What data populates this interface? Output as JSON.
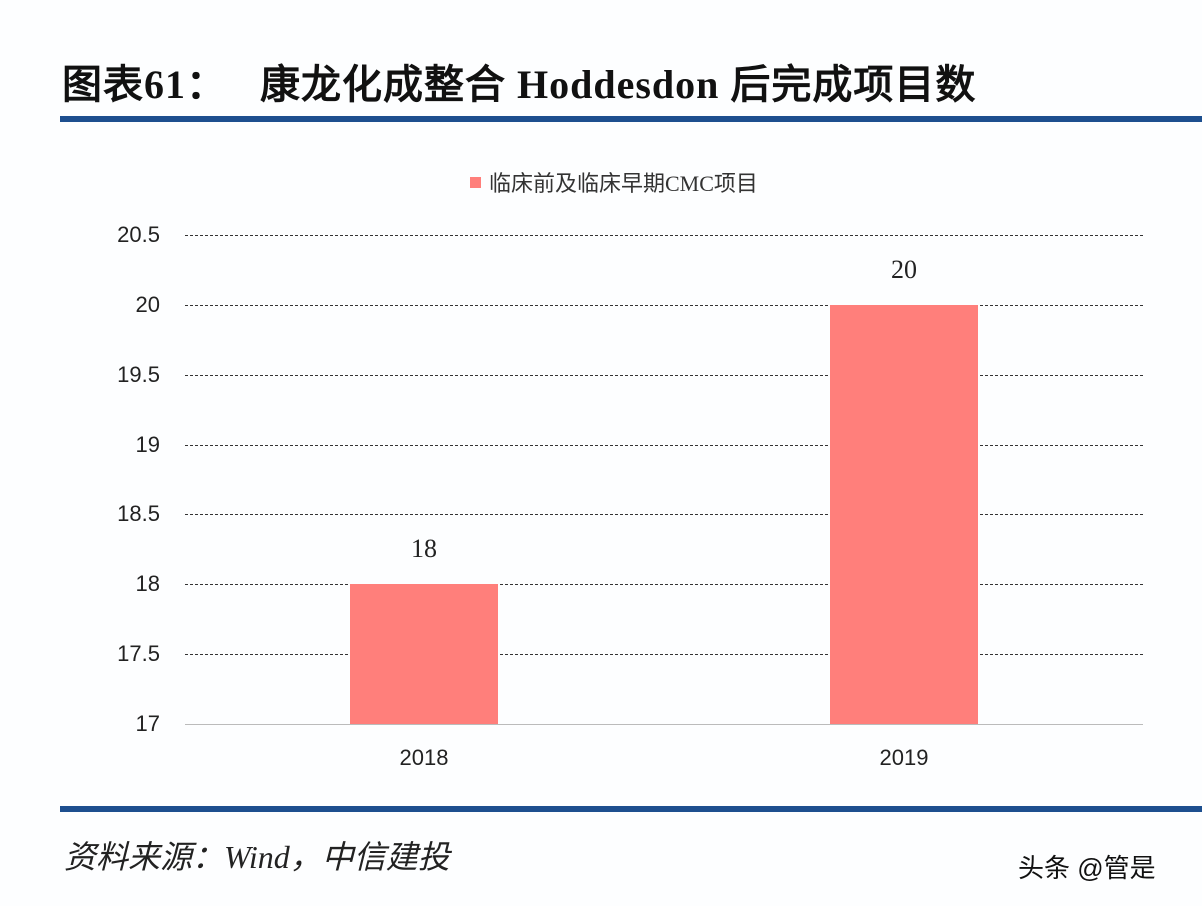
{
  "header": {
    "title": "图表61：   康龙化成整合 Hoddesdon 后完成项目数"
  },
  "footer": {
    "source": "资料来源：Wind，中信建投",
    "watermark": "头条 @管是"
  },
  "colors": {
    "bar": "#ff7f7b",
    "rule": "#1d4f8f"
  },
  "chart_data": {
    "type": "bar",
    "title": "康龙化成整合 Hoddesdon 后完成项目数",
    "categories": [
      "2018",
      "2019"
    ],
    "series": [
      {
        "name": "临床前及临床早期CMC项目",
        "values": [
          18,
          20
        ]
      }
    ],
    "data_labels": [
      "18",
      "20"
    ],
    "xlabel": "",
    "ylabel": "",
    "ylim": [
      17,
      20.5
    ],
    "yticks": [
      "20.5",
      "20",
      "19.5",
      "19",
      "18.5",
      "18",
      "17.5",
      "17"
    ],
    "grid": true,
    "legend_position": "top"
  }
}
